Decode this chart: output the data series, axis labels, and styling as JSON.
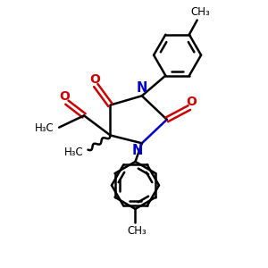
{
  "bg_color": "#ffffff",
  "bond_color": "#000000",
  "N_color": "#0000cc",
  "O_color": "#cc0000",
  "line_width": 1.8,
  "figsize": [
    3.0,
    3.0
  ],
  "dpi": 100,
  "xlim": [
    0,
    10
  ],
  "ylim": [
    0,
    10
  ],
  "font_size": 8.5
}
